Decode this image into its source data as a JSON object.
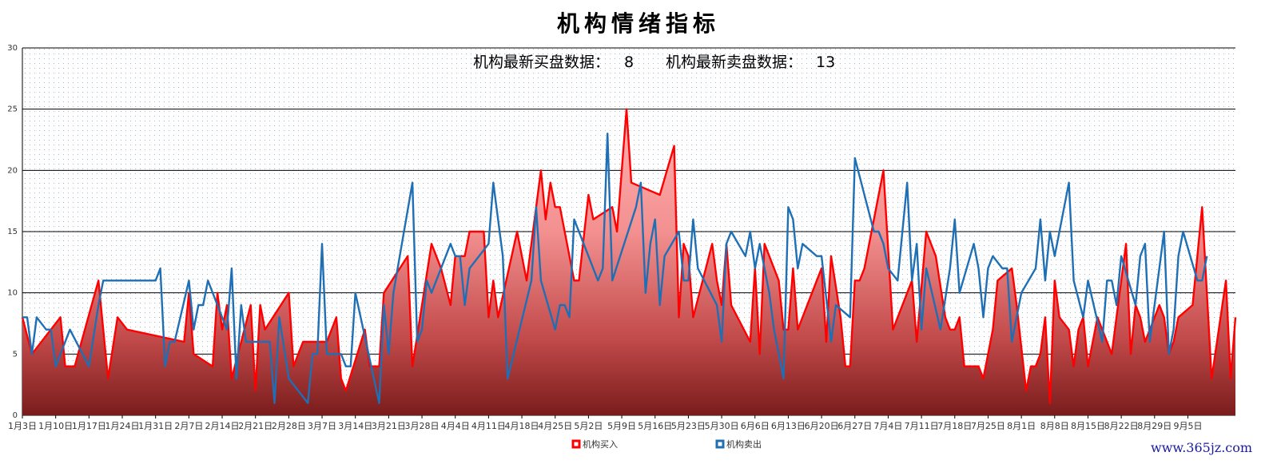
{
  "title": "机构情绪指标",
  "stats": {
    "buy_label": "机构最新买盘数据：",
    "buy_value": "8",
    "sell_label": "机构最新卖盘数据：",
    "sell_value": "13"
  },
  "watermark": "www.365jz.com",
  "colors": {
    "buy": "#ff0000",
    "sell": "#1f6fb5",
    "grid": "#000000"
  },
  "chart_data": {
    "type": "line",
    "title": "机构情绪指标",
    "xlabel": "",
    "ylabel": "",
    "ylim": [
      0,
      30
    ],
    "yticks": [
      0,
      5,
      10,
      15,
      20,
      25,
      30
    ],
    "xticks": [
      "1月3日",
      "1月10日",
      "1月17日",
      "1月24日",
      "1月31日",
      "2月7日",
      "2月14日",
      "2月21日",
      "2月28日",
      "3月7日",
      "3月14日",
      "3月21日",
      "3月28日",
      "4月4日",
      "4月11日",
      "4月18日",
      "4月25日",
      "5月2日",
      "5月9日",
      "5月16日",
      "5月23日",
      "5月30日",
      "6月6日",
      "6月13日",
      "6月20日",
      "6月27日",
      "7月4日",
      "7月11日",
      "7月18日",
      "7月25日",
      "8月1日",
      "8月8日",
      "8月15日",
      "8月22日",
      "8月29日",
      "9月5日"
    ],
    "legend_position": "bottom",
    "grid": true,
    "series": [
      {
        "name": "机构买入",
        "color": "#ff0000",
        "area": true,
        "points": [
          [
            0,
            8
          ],
          [
            2,
            5
          ],
          [
            8,
            8
          ],
          [
            9,
            4
          ],
          [
            11,
            4
          ],
          [
            16,
            11
          ],
          [
            18,
            3
          ],
          [
            20,
            8
          ],
          [
            22,
            7
          ],
          [
            34,
            6
          ],
          [
            35,
            10
          ],
          [
            36,
            5
          ],
          [
            40,
            4
          ],
          [
            41,
            10
          ],
          [
            42,
            7
          ],
          [
            43,
            9
          ],
          [
            44,
            3
          ],
          [
            48,
            9
          ],
          [
            49,
            2
          ],
          [
            50,
            9
          ],
          [
            51,
            7
          ],
          [
            56,
            10
          ],
          [
            57,
            4
          ],
          [
            59,
            6
          ],
          [
            64,
            6
          ],
          [
            66,
            8
          ],
          [
            67,
            3
          ],
          [
            68,
            2
          ],
          [
            72,
            7
          ],
          [
            73,
            4
          ],
          [
            75,
            4
          ],
          [
            76,
            10
          ],
          [
            81,
            13
          ],
          [
            82,
            4
          ],
          [
            86,
            14
          ],
          [
            88,
            12
          ],
          [
            90,
            9
          ],
          [
            91,
            13
          ],
          [
            93,
            13
          ],
          [
            94,
            15
          ],
          [
            97,
            15
          ],
          [
            98,
            8
          ],
          [
            99,
            11
          ],
          [
            100,
            8
          ],
          [
            104,
            15
          ],
          [
            106,
            11
          ],
          [
            109,
            20
          ],
          [
            110,
            16
          ],
          [
            111,
            19
          ],
          [
            112,
            17
          ],
          [
            113,
            17
          ],
          [
            116,
            11
          ],
          [
            117,
            11
          ],
          [
            119,
            18
          ],
          [
            120,
            16
          ],
          [
            124,
            17
          ],
          [
            125,
            15
          ],
          [
            127,
            25
          ],
          [
            128,
            19
          ],
          [
            134,
            18
          ],
          [
            137,
            22
          ],
          [
            138,
            8
          ],
          [
            139,
            14
          ],
          [
            140,
            13
          ],
          [
            141,
            8
          ],
          [
            145,
            14
          ],
          [
            146,
            11
          ],
          [
            147,
            9
          ],
          [
            148,
            14
          ],
          [
            149,
            9
          ],
          [
            153,
            6
          ],
          [
            154,
            12
          ],
          [
            155,
            5
          ],
          [
            156,
            14
          ],
          [
            159,
            11
          ],
          [
            160,
            7
          ],
          [
            161,
            7
          ],
          [
            162,
            12
          ],
          [
            163,
            7
          ],
          [
            167,
            11
          ],
          [
            168,
            12
          ],
          [
            169,
            6
          ],
          [
            170,
            13
          ],
          [
            172,
            8
          ],
          [
            173,
            4
          ],
          [
            174,
            4
          ],
          [
            175,
            11
          ],
          [
            176,
            11
          ],
          [
            177,
            12
          ],
          [
            181,
            20
          ],
          [
            183,
            7
          ],
          [
            187,
            11
          ],
          [
            188,
            6
          ],
          [
            190,
            15
          ],
          [
            192,
            13
          ],
          [
            194,
            8
          ],
          [
            195,
            7
          ],
          [
            196,
            7
          ],
          [
            197,
            8
          ],
          [
            198,
            4
          ],
          [
            201,
            4
          ],
          [
            202,
            3
          ],
          [
            204,
            7
          ],
          [
            205,
            11
          ],
          [
            208,
            12
          ],
          [
            209,
            9
          ],
          [
            211,
            2
          ],
          [
            212,
            4
          ],
          [
            213,
            4
          ],
          [
            214,
            5
          ],
          [
            215,
            8
          ],
          [
            216,
            1
          ],
          [
            217,
            11
          ],
          [
            218,
            8
          ],
          [
            220,
            7
          ],
          [
            221,
            4
          ],
          [
            222,
            7
          ],
          [
            223,
            8
          ],
          [
            224,
            4
          ],
          [
            226,
            8
          ],
          [
            227,
            7
          ],
          [
            229,
            5
          ],
          [
            232,
            14
          ],
          [
            233,
            5
          ],
          [
            234,
            9
          ],
          [
            235,
            8
          ],
          [
            236,
            6
          ],
          [
            239,
            9
          ],
          [
            240,
            8
          ],
          [
            241,
            5
          ],
          [
            242,
            6
          ],
          [
            243,
            8
          ],
          [
            246,
            9
          ],
          [
            248,
            17
          ],
          [
            250,
            3
          ],
          [
            253,
            11
          ],
          [
            254,
            3
          ],
          [
            255,
            8
          ]
        ]
      },
      {
        "name": "机构卖出",
        "color": "#1f6fb5",
        "area": false,
        "points": [
          [
            0,
            8
          ],
          [
            1,
            8
          ],
          [
            2,
            5
          ],
          [
            3,
            8
          ],
          [
            5,
            7
          ],
          [
            6,
            7
          ],
          [
            7,
            4
          ],
          [
            10,
            7
          ],
          [
            14,
            4
          ],
          [
            16,
            9
          ],
          [
            17,
            11
          ],
          [
            28,
            11
          ],
          [
            29,
            12
          ],
          [
            30,
            4
          ],
          [
            31,
            6
          ],
          [
            32,
            6
          ],
          [
            35,
            11
          ],
          [
            36,
            7
          ],
          [
            37,
            9
          ],
          [
            38,
            9
          ],
          [
            39,
            11
          ],
          [
            42,
            8
          ],
          [
            43,
            7
          ],
          [
            44,
            12
          ],
          [
            45,
            3
          ],
          [
            46,
            9
          ],
          [
            47,
            6
          ],
          [
            48,
            6
          ],
          [
            52,
            6
          ],
          [
            53,
            1
          ],
          [
            54,
            8
          ],
          [
            56,
            3
          ],
          [
            58,
            2
          ],
          [
            60,
            1
          ],
          [
            61,
            5
          ],
          [
            62,
            5
          ],
          [
            63,
            14
          ],
          [
            64,
            5
          ],
          [
            67,
            5
          ],
          [
            68,
            4
          ],
          [
            69,
            4
          ],
          [
            70,
            10
          ],
          [
            75,
            1
          ],
          [
            76,
            9
          ],
          [
            77,
            5
          ],
          [
            78,
            10
          ],
          [
            82,
            19
          ],
          [
            83,
            6
          ],
          [
            84,
            7
          ],
          [
            85,
            11
          ],
          [
            86,
            10
          ],
          [
            90,
            14
          ],
          [
            91,
            13
          ],
          [
            92,
            13
          ],
          [
            93,
            9
          ],
          [
            94,
            12
          ],
          [
            98,
            14
          ],
          [
            99,
            19
          ],
          [
            101,
            13
          ],
          [
            102,
            3
          ],
          [
            107,
            11
          ],
          [
            108,
            17
          ],
          [
            109,
            11
          ],
          [
            112,
            7
          ],
          [
            113,
            9
          ],
          [
            114,
            9
          ],
          [
            115,
            8
          ],
          [
            116,
            16
          ],
          [
            121,
            11
          ],
          [
            122,
            12
          ],
          [
            123,
            23
          ],
          [
            124,
            11
          ],
          [
            129,
            17
          ],
          [
            130,
            19
          ],
          [
            131,
            10
          ],
          [
            132,
            14
          ],
          [
            133,
            16
          ],
          [
            134,
            9
          ],
          [
            135,
            13
          ],
          [
            138,
            15
          ],
          [
            139,
            11
          ],
          [
            140,
            11
          ],
          [
            141,
            16
          ],
          [
            142,
            12
          ],
          [
            146,
            9
          ],
          [
            147,
            6
          ],
          [
            148,
            14
          ],
          [
            149,
            15
          ],
          [
            152,
            13
          ],
          [
            153,
            15
          ],
          [
            154,
            12
          ],
          [
            155,
            14
          ],
          [
            157,
            10
          ],
          [
            158,
            7
          ],
          [
            160,
            3
          ],
          [
            161,
            17
          ],
          [
            162,
            16
          ],
          [
            163,
            12
          ],
          [
            164,
            14
          ],
          [
            167,
            13
          ],
          [
            168,
            13
          ],
          [
            170,
            6
          ],
          [
            171,
            9
          ],
          [
            174,
            8
          ],
          [
            175,
            21
          ],
          [
            179,
            15
          ],
          [
            180,
            15
          ],
          [
            181,
            14
          ],
          [
            182,
            12
          ],
          [
            184,
            11
          ],
          [
            186,
            19
          ],
          [
            187,
            11
          ],
          [
            188,
            14
          ],
          [
            189,
            7
          ],
          [
            190,
            12
          ],
          [
            193,
            7
          ],
          [
            195,
            12
          ],
          [
            196,
            16
          ],
          [
            197,
            10
          ],
          [
            200,
            14
          ],
          [
            201,
            12
          ],
          [
            202,
            8
          ],
          [
            203,
            12
          ],
          [
            204,
            13
          ],
          [
            206,
            12
          ],
          [
            207,
            12
          ],
          [
            208,
            6
          ],
          [
            210,
            10
          ],
          [
            213,
            12
          ],
          [
            214,
            16
          ],
          [
            215,
            11
          ],
          [
            216,
            15
          ],
          [
            217,
            13
          ],
          [
            220,
            19
          ],
          [
            221,
            11
          ],
          [
            223,
            8
          ],
          [
            224,
            11
          ],
          [
            227,
            6
          ],
          [
            228,
            11
          ],
          [
            229,
            11
          ],
          [
            230,
            9
          ],
          [
            231,
            13
          ],
          [
            234,
            9
          ],
          [
            235,
            13
          ],
          [
            236,
            14
          ],
          [
            237,
            6
          ],
          [
            240,
            15
          ],
          [
            241,
            5
          ],
          [
            242,
            7
          ],
          [
            243,
            13
          ],
          [
            244,
            15
          ],
          [
            247,
            11
          ],
          [
            248,
            11
          ],
          [
            249,
            13
          ]
        ]
      }
    ]
  }
}
